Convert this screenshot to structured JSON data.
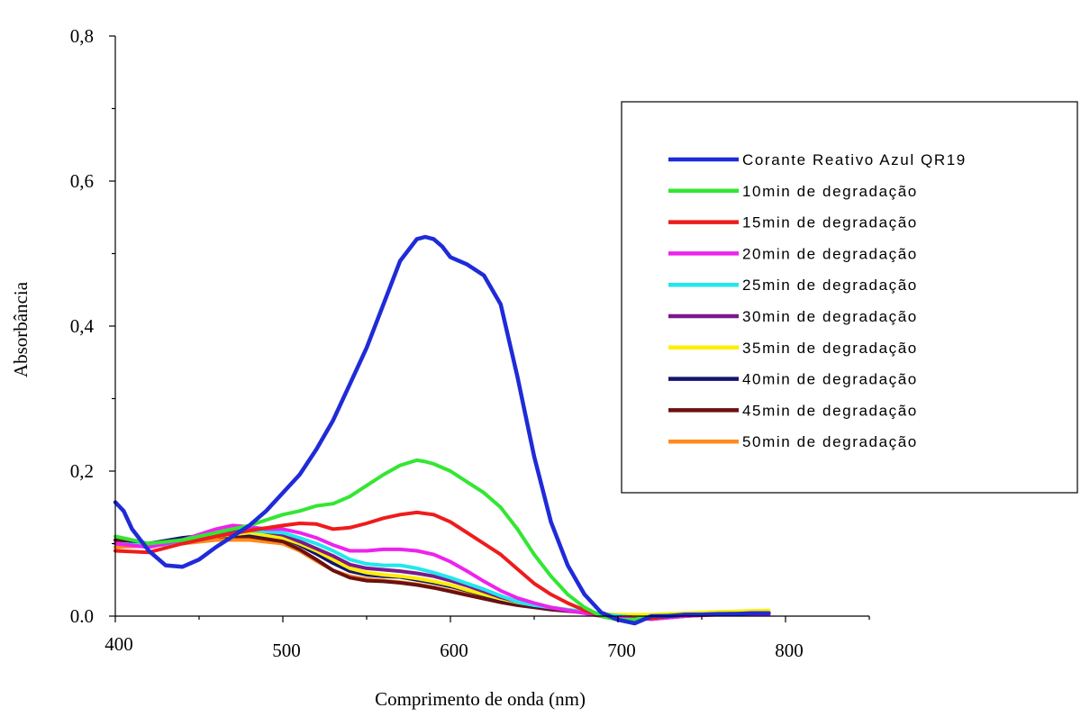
{
  "chart_data": {
    "type": "line",
    "xlabel": "Comprimento de onda (nm)",
    "ylabel": "Absorbância",
    "xlim": [
      400,
      850
    ],
    "ylim": [
      0,
      0.8
    ],
    "x_ticks": [
      {
        "value": 400,
        "label": "400"
      },
      {
        "value": 500,
        "label": "500"
      },
      {
        "value": 600,
        "label": "600"
      },
      {
        "value": 700,
        "label": "700"
      },
      {
        "value": 800,
        "label": "800"
      }
    ],
    "y_ticks": [
      {
        "value": 0.0,
        "label": "0.0"
      },
      {
        "value": 0.2,
        "label": "0,2"
      },
      {
        "value": 0.4,
        "label": "0,4"
      },
      {
        "value": 0.6,
        "label": "0,6"
      },
      {
        "value": 0.8,
        "label": "0,8"
      }
    ],
    "grid": false,
    "legend_position": "right",
    "series": [
      {
        "name": "Corante Reativo Azul QR19",
        "color": "#1f2bd8",
        "x": [
          400,
          405,
          410,
          420,
          430,
          440,
          450,
          460,
          470,
          480,
          490,
          500,
          510,
          520,
          530,
          540,
          550,
          560,
          570,
          580,
          585,
          590,
          595,
          600,
          605,
          610,
          620,
          630,
          640,
          650,
          660,
          670,
          680,
          690,
          700,
          710,
          720,
          730,
          740,
          750,
          760,
          770,
          780,
          790
        ],
        "y": [
          0.157,
          0.145,
          0.12,
          0.09,
          0.07,
          0.068,
          0.078,
          0.095,
          0.11,
          0.125,
          0.145,
          0.17,
          0.195,
          0.23,
          0.27,
          0.32,
          0.37,
          0.43,
          0.49,
          0.52,
          0.523,
          0.52,
          0.51,
          0.495,
          0.49,
          0.485,
          0.47,
          0.43,
          0.33,
          0.22,
          0.13,
          0.07,
          0.03,
          0.005,
          -0.005,
          -0.01,
          0.0,
          0.0,
          0.002,
          0.002,
          0.003,
          0.003,
          0.004,
          0.004
        ]
      },
      {
        "name": "10min de degradação",
        "color": "#33e633",
        "x": [
          400,
          420,
          440,
          460,
          480,
          500,
          510,
          520,
          530,
          540,
          550,
          560,
          570,
          580,
          585,
          590,
          600,
          610,
          620,
          630,
          640,
          650,
          660,
          670,
          680,
          690,
          700,
          710,
          720,
          740,
          760,
          780,
          790
        ],
        "y": [
          0.11,
          0.1,
          0.105,
          0.115,
          0.125,
          0.14,
          0.145,
          0.152,
          0.155,
          0.165,
          0.18,
          0.195,
          0.208,
          0.215,
          0.213,
          0.21,
          0.2,
          0.185,
          0.17,
          0.15,
          0.12,
          0.085,
          0.055,
          0.03,
          0.012,
          0.0,
          -0.005,
          -0.005,
          0.0,
          0.002,
          0.003,
          0.004,
          0.004
        ]
      },
      {
        "name": "15min de degradação",
        "color": "#ee1c1c",
        "x": [
          400,
          420,
          440,
          460,
          480,
          500,
          510,
          520,
          530,
          540,
          550,
          560,
          570,
          580,
          590,
          600,
          610,
          620,
          630,
          640,
          650,
          660,
          670,
          680,
          690,
          700,
          720,
          740,
          760,
          790
        ],
        "y": [
          0.09,
          0.088,
          0.1,
          0.11,
          0.118,
          0.125,
          0.128,
          0.127,
          0.12,
          0.122,
          0.128,
          0.135,
          0.14,
          0.143,
          0.14,
          0.13,
          0.115,
          0.1,
          0.085,
          0.065,
          0.045,
          0.03,
          0.018,
          0.008,
          0.0,
          -0.005,
          -0.003,
          0.002,
          0.003,
          0.004
        ]
      },
      {
        "name": "20min de degradação",
        "color": "#ee22ee",
        "x": [
          400,
          420,
          440,
          460,
          470,
          480,
          490,
          500,
          510,
          520,
          530,
          540,
          550,
          560,
          570,
          580,
          590,
          600,
          610,
          620,
          630,
          640,
          650,
          660,
          670,
          680,
          690,
          700,
          720,
          740,
          760,
          790
        ],
        "y": [
          0.1,
          0.095,
          0.105,
          0.12,
          0.125,
          0.123,
          0.12,
          0.12,
          0.115,
          0.108,
          0.098,
          0.09,
          0.09,
          0.092,
          0.092,
          0.09,
          0.085,
          0.075,
          0.062,
          0.048,
          0.035,
          0.025,
          0.018,
          0.012,
          0.008,
          0.004,
          0.0,
          -0.003,
          -0.004,
          0.0,
          0.002,
          0.002
        ]
      },
      {
        "name": "25min de degradação",
        "color": "#22e6ee",
        "x": [
          400,
          420,
          440,
          460,
          480,
          500,
          510,
          520,
          530,
          540,
          550,
          560,
          570,
          580,
          590,
          600,
          610,
          620,
          630,
          640,
          650,
          660,
          670,
          680,
          690,
          700,
          720,
          740,
          760,
          790
        ],
        "y": [
          0.1,
          0.097,
          0.1,
          0.11,
          0.118,
          0.115,
          0.108,
          0.1,
          0.09,
          0.078,
          0.072,
          0.07,
          0.07,
          0.066,
          0.06,
          0.053,
          0.045,
          0.037,
          0.028,
          0.02,
          0.015,
          0.012,
          0.009,
          0.006,
          0.003,
          0.0,
          -0.004,
          0.0,
          0.003,
          0.004
        ]
      },
      {
        "name": "30min de degradação",
        "color": "#7a1a8a",
        "x": [
          400,
          420,
          440,
          460,
          480,
          500,
          510,
          520,
          530,
          540,
          550,
          560,
          570,
          580,
          590,
          600,
          610,
          620,
          630,
          640,
          650,
          660,
          670,
          680,
          690,
          700,
          720,
          740,
          760,
          790
        ],
        "y": [
          0.1,
          0.097,
          0.105,
          0.113,
          0.12,
          0.112,
          0.103,
          0.093,
          0.083,
          0.071,
          0.066,
          0.064,
          0.062,
          0.059,
          0.055,
          0.049,
          0.042,
          0.034,
          0.026,
          0.02,
          0.015,
          0.011,
          0.008,
          0.006,
          0.003,
          0.0,
          -0.004,
          0.0,
          0.003,
          0.004
        ]
      },
      {
        "name": "35min de degradação",
        "color": "#ffee00",
        "x": [
          400,
          420,
          440,
          460,
          480,
          500,
          510,
          520,
          530,
          540,
          550,
          560,
          570,
          580,
          590,
          600,
          610,
          620,
          630,
          640,
          650,
          660,
          670,
          680,
          690,
          700,
          720,
          740,
          760,
          790
        ],
        "y": [
          0.1,
          0.097,
          0.103,
          0.11,
          0.115,
          0.108,
          0.1,
          0.09,
          0.078,
          0.066,
          0.06,
          0.057,
          0.055,
          0.052,
          0.048,
          0.043,
          0.036,
          0.03,
          0.024,
          0.019,
          0.015,
          0.012,
          0.009,
          0.006,
          0.003,
          0.002,
          0.002,
          0.004,
          0.006,
          0.008
        ]
      },
      {
        "name": "40min de degradação",
        "color": "#141470",
        "x": [
          400,
          420,
          440,
          460,
          480,
          500,
          510,
          520,
          530,
          540,
          550,
          560,
          570,
          580,
          590,
          600,
          610,
          620,
          630,
          640,
          650,
          660,
          670,
          680,
          690,
          700,
          720,
          740,
          760,
          790
        ],
        "y": [
          0.1,
          0.1,
          0.108,
          0.113,
          0.113,
          0.108,
          0.098,
          0.086,
          0.073,
          0.062,
          0.057,
          0.055,
          0.054,
          0.05,
          0.046,
          0.041,
          0.035,
          0.029,
          0.023,
          0.018,
          0.014,
          0.011,
          0.008,
          0.006,
          0.003,
          0.0,
          -0.004,
          0.0,
          0.003,
          0.005
        ]
      },
      {
        "name": "45min de degradação",
        "color": "#6b1010",
        "x": [
          400,
          420,
          440,
          460,
          480,
          500,
          510,
          520,
          530,
          540,
          550,
          560,
          570,
          580,
          590,
          600,
          610,
          620,
          630,
          640,
          650,
          660,
          670,
          680,
          690,
          700,
          720,
          740,
          760,
          790
        ],
        "y": [
          0.105,
          0.1,
          0.105,
          0.11,
          0.11,
          0.103,
          0.092,
          0.078,
          0.063,
          0.053,
          0.049,
          0.048,
          0.046,
          0.043,
          0.039,
          0.034,
          0.029,
          0.024,
          0.019,
          0.015,
          0.012,
          0.009,
          0.007,
          0.005,
          0.002,
          0.0,
          -0.003,
          0.0,
          0.003,
          0.005
        ]
      },
      {
        "name": "50min de degradação",
        "color": "#ff8c1a",
        "x": [
          400,
          420,
          440,
          460,
          480,
          500,
          510,
          520,
          530,
          540,
          550,
          560,
          570,
          580,
          590,
          600,
          610,
          620,
          630,
          640,
          650,
          660,
          670,
          680,
          690,
          700,
          720,
          740,
          760,
          790
        ],
        "y": [
          0.095,
          0.097,
          0.1,
          0.105,
          0.105,
          0.1,
          0.09,
          0.076,
          0.063,
          0.055,
          0.051,
          0.049,
          0.047,
          0.044,
          0.04,
          0.035,
          0.03,
          0.025,
          0.02,
          0.016,
          0.013,
          0.01,
          0.008,
          0.006,
          0.003,
          0.001,
          -0.002,
          0.002,
          0.004,
          0.006
        ]
      }
    ]
  }
}
